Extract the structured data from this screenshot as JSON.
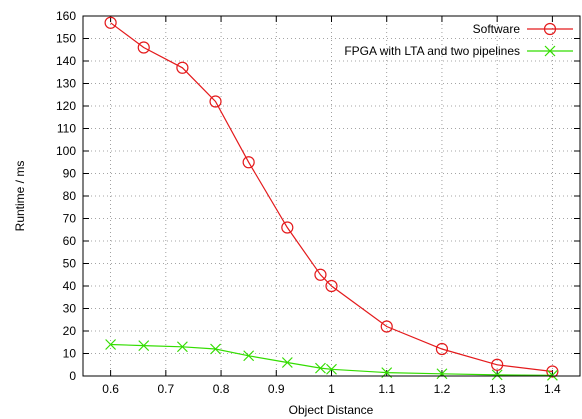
{
  "chart_data": {
    "type": "line",
    "title": "",
    "xlabel": "Object Distance",
    "ylabel": "Runtime / ms",
    "xlim": [
      0.55,
      1.45
    ],
    "ylim": [
      0,
      160
    ],
    "xticks": [
      "0.6",
      "0.7",
      "0.8",
      "0.9",
      "1",
      "1.1",
      "1.2",
      "1.3",
      "1.4"
    ],
    "yticks": [
      "0",
      "10",
      "20",
      "30",
      "40",
      "50",
      "60",
      "70",
      "80",
      "90",
      "100",
      "110",
      "120",
      "130",
      "140",
      "150",
      "160"
    ],
    "grid": true,
    "legend_position": "top-right",
    "series": [
      {
        "name": "Software",
        "color": "#e41a1c",
        "marker": "circle",
        "x": [
          0.6,
          0.66,
          0.73,
          0.79,
          0.85,
          0.92,
          0.98,
          1.0,
          1.1,
          1.2,
          1.3,
          1.4
        ],
        "y": [
          157,
          146,
          137,
          122,
          95,
          66,
          45,
          40,
          22,
          12,
          5,
          2
        ]
      },
      {
        "name": "FPGA with LTA and two pipelines",
        "color": "#33dd00",
        "marker": "x",
        "x": [
          0.6,
          0.66,
          0.73,
          0.79,
          0.85,
          0.92,
          0.98,
          1.0,
          1.1,
          1.2,
          1.3,
          1.4
        ],
        "y": [
          14,
          13.5,
          13,
          12,
          9,
          6,
          3.5,
          3,
          1.5,
          1,
          0.5,
          0.3
        ]
      }
    ]
  }
}
